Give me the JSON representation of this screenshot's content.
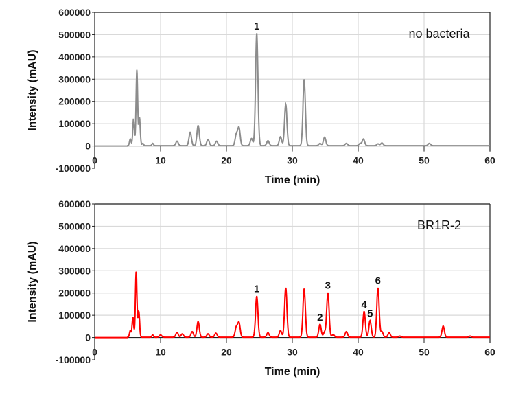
{
  "chart_data": [
    {
      "type": "line",
      "title": "no bacteria",
      "xlabel": "Time (min)",
      "ylabel": "Intensity (mAU)",
      "xlim": [
        0,
        60
      ],
      "ylim": [
        -100000,
        600000
      ],
      "xticks": [
        0,
        10,
        20,
        30,
        40,
        50,
        60
      ],
      "yticks": [
        -100000,
        0,
        100000,
        200000,
        300000,
        400000,
        500000,
        600000
      ],
      "grid": true,
      "color": "#8c8c8c",
      "peaks": [
        [
          5.4,
          30000
        ],
        [
          5.9,
          120000
        ],
        [
          6.4,
          340000
        ],
        [
          6.8,
          125000
        ],
        [
          7.3,
          10000
        ],
        [
          8.8,
          10000
        ],
        [
          12.5,
          20000
        ],
        [
          14.5,
          60000
        ],
        [
          15.7,
          90000
        ],
        [
          17.2,
          28000
        ],
        [
          18.5,
          20000
        ],
        [
          21.5,
          50000
        ],
        [
          21.9,
          80000
        ],
        [
          23.8,
          32000
        ],
        [
          24.6,
          505000
        ],
        [
          26.3,
          22000
        ],
        [
          28.2,
          40000
        ],
        [
          29.0,
          185000
        ],
        [
          31.8,
          298000
        ],
        [
          34.2,
          10000
        ],
        [
          34.9,
          38000
        ],
        [
          38.2,
          10000
        ],
        [
          40.3,
          10000
        ],
        [
          40.8,
          30000
        ],
        [
          43.0,
          8000
        ],
        [
          43.6,
          12000
        ],
        [
          50.8,
          10000
        ]
      ],
      "annotations": [
        {
          "label": "1",
          "x": 24.6,
          "y": 505000
        }
      ]
    },
    {
      "type": "line",
      "title": "BR1R-2",
      "xlabel": "Time (min)",
      "ylabel": "Intensity (mAU)",
      "xlim": [
        0,
        60
      ],
      "ylim": [
        -100000,
        600000
      ],
      "xticks": [
        0,
        10,
        20,
        30,
        40,
        50,
        60
      ],
      "yticks": [
        -100000,
        0,
        100000,
        200000,
        300000,
        400000,
        500000,
        600000
      ],
      "grid": true,
      "color": "#ff0000",
      "peaks": [
        [
          5.4,
          30000
        ],
        [
          5.8,
          90000
        ],
        [
          6.3,
          295000
        ],
        [
          6.7,
          115000
        ],
        [
          8.8,
          10000
        ],
        [
          10.0,
          10000
        ],
        [
          12.5,
          22000
        ],
        [
          13.3,
          15000
        ],
        [
          14.8,
          25000
        ],
        [
          15.7,
          70000
        ],
        [
          17.2,
          15000
        ],
        [
          18.4,
          18000
        ],
        [
          21.5,
          45000
        ],
        [
          21.9,
          65000
        ],
        [
          24.6,
          185000
        ],
        [
          26.3,
          20000
        ],
        [
          28.2,
          30000
        ],
        [
          29.0,
          222000
        ],
        [
          31.8,
          218000
        ],
        [
          34.2,
          58000
        ],
        [
          34.9,
          22000
        ],
        [
          35.4,
          200000
        ],
        [
          36.2,
          12000
        ],
        [
          38.2,
          25000
        ],
        [
          40.9,
          115000
        ],
        [
          41.8,
          75000
        ],
        [
          43.0,
          222000
        ],
        [
          43.6,
          25000
        ],
        [
          44.7,
          20000
        ],
        [
          46.3,
          5000
        ],
        [
          52.9,
          50000
        ],
        [
          57.0,
          5000
        ]
      ],
      "annotations": [
        {
          "label": "1",
          "x": 24.6,
          "y": 185000
        },
        {
          "label": "2",
          "x": 34.2,
          "y": 58000
        },
        {
          "label": "3",
          "x": 35.4,
          "y": 200000
        },
        {
          "label": "4",
          "x": 40.9,
          "y": 115000
        },
        {
          "label": "5",
          "x": 41.8,
          "y": 75000
        },
        {
          "label": "6",
          "x": 43.0,
          "y": 222000
        }
      ]
    }
  ]
}
